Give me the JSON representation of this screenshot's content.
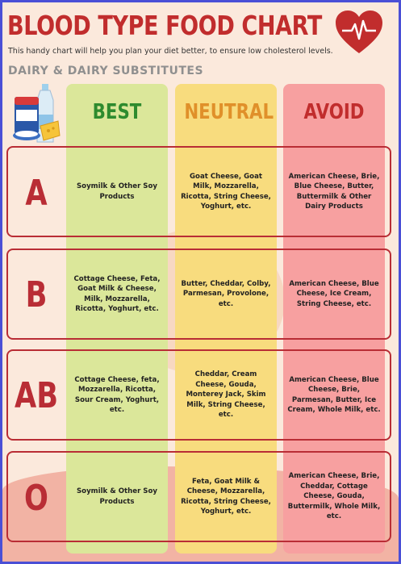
{
  "header": {
    "title": "BLOOD TYPE FOOD CHART",
    "subtitle": "This handy chart will help you plan your diet better, to ensure low cholesterol levels.",
    "section": "DAIRY & DAIRY SUBSTITUTES"
  },
  "columns": {
    "best": "BEST",
    "neutral": "NEUTRAL",
    "avoid": "AVOID"
  },
  "rows": [
    {
      "type": "A",
      "best": "Soymilk & Other Soy Products",
      "neutral": "Goat Cheese, Goat Milk, Mozzarella, Ricotta, String Cheese, Yoghurt, etc.",
      "avoid": "American Cheese, Brie, Blue Cheese, Butter, Buttermilk & Other Dairy Products"
    },
    {
      "type": "B",
      "best": "Cottage Cheese, Feta, Goat Milk & Cheese, Milk, Mozzarella, Ricotta, Yoghurt, etc.",
      "neutral": "Butter, Cheddar, Colby, Parmesan, Provolone, etc.",
      "avoid": "American Cheese, Blue Cheese, Ice Cream, String Cheese, etc."
    },
    {
      "type": "AB",
      "best": "Cottage Cheese, feta, Mozzarella, Ricotta, Sour Cream, Yoghurt, etc.",
      "neutral": "Cheddar, Cream Cheese, Gouda, Monterey Jack, Skim Milk, String Cheese, etc.",
      "avoid": "American Cheese, Blue Cheese, Brie, Parmesan, Butter, Ice Cream, Whole Milk, etc."
    },
    {
      "type": "O",
      "best": "Soymilk & Other Soy Products",
      "neutral": "Feta, Goat Milk & Cheese, Mozzarella, Ricotta, String Cheese, Yoghurt, etc.",
      "avoid": "American Cheese, Brie, Cheddar, Cottage Cheese, Gouda, Buttermilk, Whole Milk, etc."
    }
  ],
  "colors": {
    "accent_red": "#c12d2d",
    "best_green": "#2e8b2e",
    "neutral_orange": "#e0902a",
    "border": "#4a4fd6"
  },
  "icons": [
    "heart-rate-icon",
    "dairy-products-icon"
  ]
}
